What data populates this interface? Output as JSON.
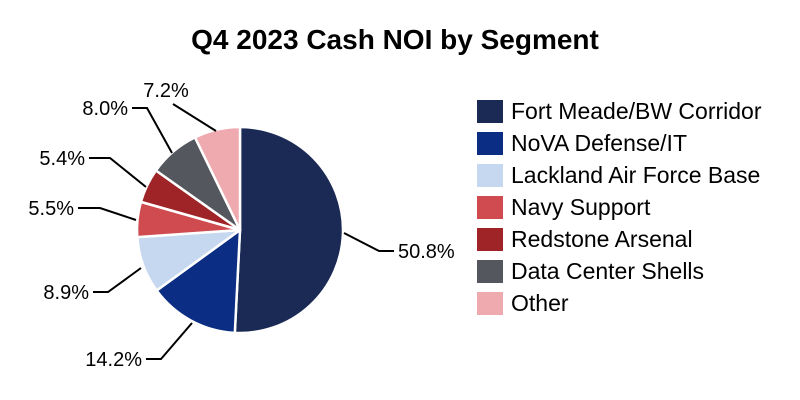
{
  "title": "Q4 2023 Cash NOI by Segment",
  "chart_data": {
    "type": "pie",
    "title": "Q4 2023 Cash NOI by Segment",
    "start_angle": "12 o'clock",
    "direction": "clockwise",
    "legend_position": "right",
    "grid": false,
    "background_color": "#ffffff",
    "leader_line_color": "#000000",
    "slice_border_color": "#ffffff",
    "series": [
      {
        "label": "Fort Meade/BW Corridor",
        "value": 50.8,
        "color": "#1b2a55"
      },
      {
        "label": "NoVA Defense/IT",
        "value": 14.2,
        "color": "#0b2e84"
      },
      {
        "label": "Lackland Air Force Base",
        "value": 8.9,
        "color": "#c5d8ef"
      },
      {
        "label": "Navy Support",
        "value": 5.5,
        "color": "#d04b50"
      },
      {
        "label": "Redstone Arsenal",
        "value": 5.4,
        "color": "#9f2428"
      },
      {
        "label": "Data Center Shells",
        "value": 8.0,
        "color": "#54585e"
      },
      {
        "label": "Other",
        "value": 7.2,
        "color": "#eeaaaf"
      }
    ],
    "value_labels": [
      "50.8%",
      "14.2%",
      "8.9%",
      "5.5%",
      "5.4%",
      "8.0%",
      "7.2%"
    ]
  }
}
